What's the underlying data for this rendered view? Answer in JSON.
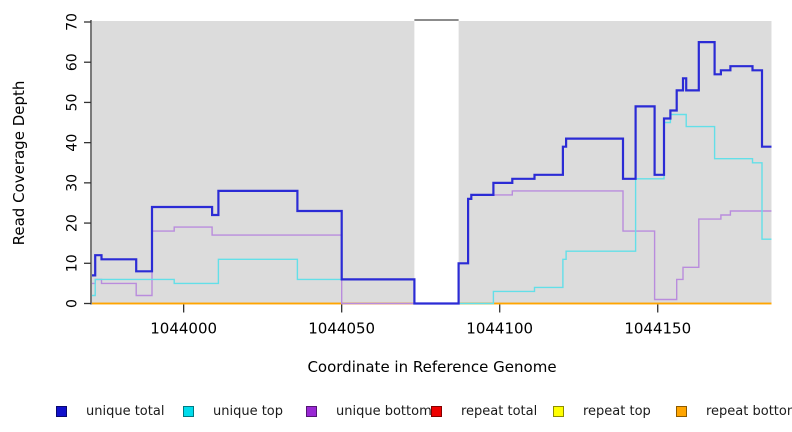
{
  "chart_data": {
    "type": "step-line",
    "title": "",
    "xlabel": "Coordinate in Reference Genome",
    "ylabel": "Read Coverage Depth",
    "xlim": [
      1043971,
      1044186
    ],
    "ylim": [
      0,
      70
    ],
    "xticks": [
      1044000,
      1044050,
      1044100,
      1044150
    ],
    "yticks": [
      0,
      10,
      20,
      30,
      40,
      50,
      60,
      70
    ],
    "plot_background": "#DCDCDC",
    "page_background": "#FFFFFF",
    "axis_color": "#333333",
    "tick_label_color": "#000000",
    "grid": false,
    "legend_position": "bottom",
    "gap_region": {
      "x_start": 1044073,
      "x_end": 1044087,
      "fill": "#FFFFFF",
      "top_line_color": "#8C8C8C"
    },
    "draw_order": [
      3,
      4,
      5,
      2,
      1,
      0
    ],
    "series": [
      {
        "name": "unique total",
        "color": "#2B2BD5",
        "legend_color": "#1111CC",
        "line_width": 2.2,
        "points": [
          [
            1043971,
            7
          ],
          [
            1043972,
            12
          ],
          [
            1043974,
            11
          ],
          [
            1043985,
            8
          ],
          [
            1043990,
            24
          ],
          [
            1044009,
            22
          ],
          [
            1044011,
            28
          ],
          [
            1044036,
            23
          ],
          [
            1044050,
            6
          ],
          [
            1044073,
            0
          ],
          [
            1044087,
            10
          ],
          [
            1044090,
            26
          ],
          [
            1044091,
            27
          ],
          [
            1044098,
            30
          ],
          [
            1044104,
            31
          ],
          [
            1044111,
            32
          ],
          [
            1044120,
            39
          ],
          [
            1044121,
            41
          ],
          [
            1044139,
            31
          ],
          [
            1044143,
            49
          ],
          [
            1044149,
            32
          ],
          [
            1044152,
            46
          ],
          [
            1044154,
            48
          ],
          [
            1044156,
            53
          ],
          [
            1044158,
            56
          ],
          [
            1044159,
            53
          ],
          [
            1044163,
            65
          ],
          [
            1044168,
            57
          ],
          [
            1044170,
            58
          ],
          [
            1044173,
            59
          ],
          [
            1044180,
            58
          ],
          [
            1044183,
            39
          ],
          [
            1044186,
            39
          ]
        ]
      },
      {
        "name": "unique top",
        "color": "#63DFE8",
        "legend_color": "#00DCEC",
        "line_width": 1.4,
        "points": [
          [
            1043971,
            2
          ],
          [
            1043972,
            6
          ],
          [
            1043997,
            5
          ],
          [
            1044011,
            11
          ],
          [
            1044036,
            6
          ],
          [
            1044073,
            0
          ],
          [
            1044098,
            3
          ],
          [
            1044111,
            4
          ],
          [
            1044120,
            11
          ],
          [
            1044121,
            13
          ],
          [
            1044143,
            31
          ],
          [
            1044152,
            45
          ],
          [
            1044154,
            47
          ],
          [
            1044159,
            44
          ],
          [
            1044168,
            36
          ],
          [
            1044180,
            35
          ],
          [
            1044183,
            16
          ],
          [
            1044186,
            16
          ]
        ]
      },
      {
        "name": "unique bottom",
        "color": "#B98CDD",
        "legend_color": "#9928D4",
        "line_width": 1.4,
        "points": [
          [
            1043971,
            5
          ],
          [
            1043972,
            6
          ],
          [
            1043974,
            5
          ],
          [
            1043985,
            2
          ],
          [
            1043990,
            18
          ],
          [
            1043997,
            19
          ],
          [
            1044009,
            17
          ],
          [
            1044050,
            0
          ],
          [
            1044087,
            10
          ],
          [
            1044090,
            26
          ],
          [
            1044091,
            27
          ],
          [
            1044104,
            28
          ],
          [
            1044139,
            18
          ],
          [
            1044149,
            1
          ],
          [
            1044156,
            6
          ],
          [
            1044158,
            9
          ],
          [
            1044163,
            21
          ],
          [
            1044170,
            22
          ],
          [
            1044173,
            23
          ],
          [
            1044186,
            23
          ]
        ]
      },
      {
        "name": "repeat total",
        "color": "#DD0000",
        "legend_color": "#EE0000",
        "line_width": 1.2,
        "points": [
          [
            1043971,
            0
          ],
          [
            1044186,
            0
          ]
        ]
      },
      {
        "name": "repeat top",
        "color": "#FFFF00",
        "legend_color": "#FFFF00",
        "line_width": 1.2,
        "points": [
          [
            1043971,
            0
          ],
          [
            1044186,
            0
          ]
        ]
      },
      {
        "name": "repeat bottom",
        "color": "#FFA500",
        "legend_color": "#FFA500",
        "line_width": 1.8,
        "points": [
          [
            1043971,
            0
          ],
          [
            1044186,
            0
          ]
        ]
      }
    ]
  }
}
